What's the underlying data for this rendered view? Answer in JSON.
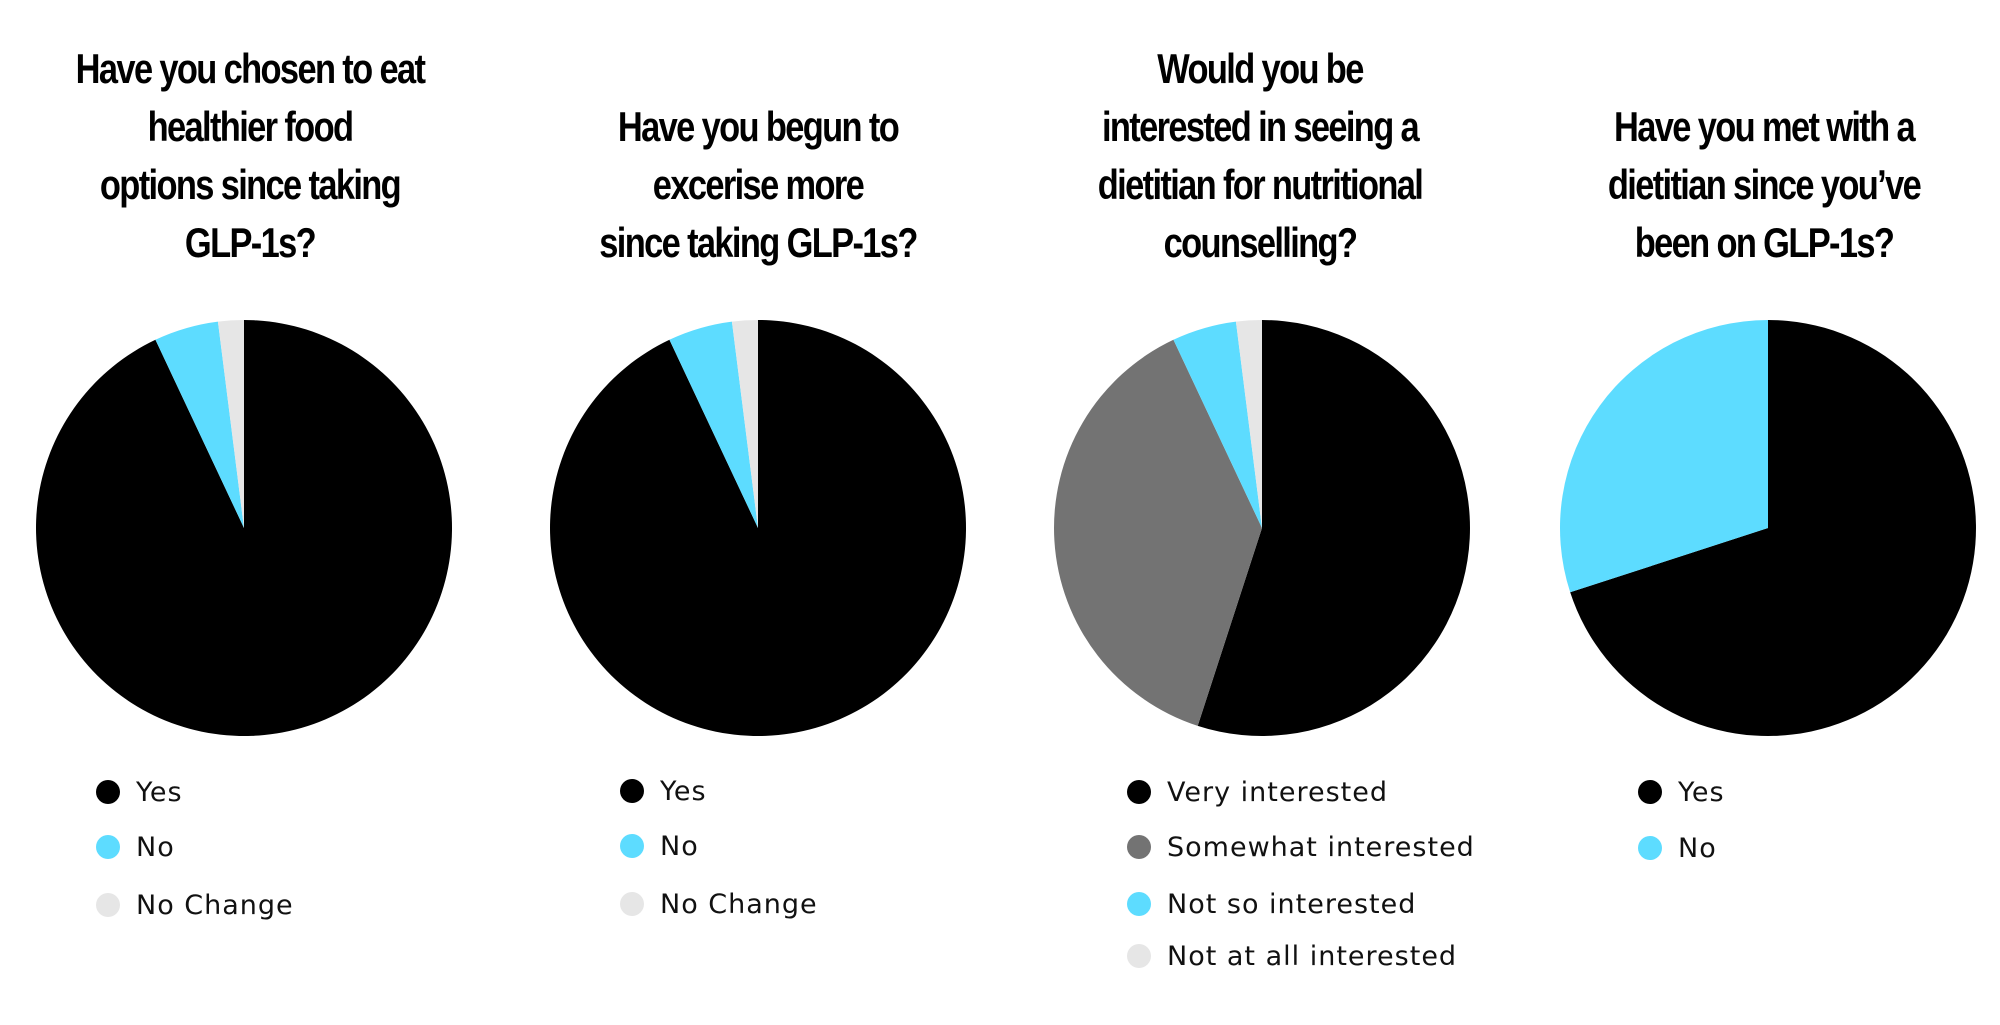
{
  "chart_data": [
    {
      "type": "pie",
      "title_lines": [
        "Have you chosen to eat",
        "healthier food",
        "options since taking",
        "GLP-1s?"
      ],
      "slices": [
        {
          "label": "Yes",
          "value": 93,
          "color": "#000000"
        },
        {
          "label": "No",
          "value": 5,
          "color": "#5ddcff"
        },
        {
          "label": "No Change",
          "value": 2,
          "color": "#e6e6e6"
        }
      ],
      "legend_placement": "bottom"
    },
    {
      "type": "pie",
      "title_lines": [
        "",
        "Have you begun to",
        "excerise more",
        "since taking GLP-1s?"
      ],
      "slices": [
        {
          "label": "Yes",
          "value": 93,
          "color": "#000000"
        },
        {
          "label": "No",
          "value": 5,
          "color": "#5ddcff"
        },
        {
          "label": "No Change",
          "value": 2,
          "color": "#e6e6e6"
        }
      ],
      "legend_placement": "bottom"
    },
    {
      "type": "pie",
      "title_lines": [
        "Would you be",
        "interested in seeing a",
        "dietitian for nutritional",
        "counselling?"
      ],
      "slices": [
        {
          "label": "Very interested",
          "value": 55,
          "color": "#000000"
        },
        {
          "label": "Somewhat interested",
          "value": 38,
          "color": "#737373"
        },
        {
          "label": "Not so interested",
          "value": 5,
          "color": "#5ddcff"
        },
        {
          "label": "Not at all interested",
          "value": 2,
          "color": "#e6e6e6"
        }
      ],
      "legend_placement": "bottom"
    },
    {
      "type": "pie",
      "title_lines": [
        "",
        "Have you met with a",
        "dietitian since you’ve",
        "been on  GLP-1s?"
      ],
      "slices": [
        {
          "label": "Yes",
          "value": 70,
          "color": "#000000"
        },
        {
          "label": "No",
          "value": 30,
          "color": "#5ddcff"
        }
      ],
      "legend_placement": "bottom"
    }
  ]
}
